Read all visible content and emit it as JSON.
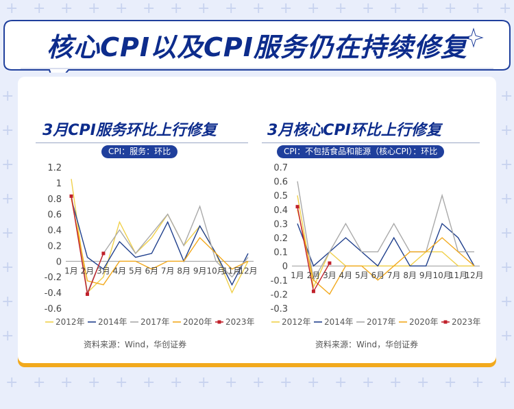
{
  "page": {
    "title": "核心CPI以及CPI服务仍在持续修复",
    "colors": {
      "background": "#e9eefb",
      "title": "#0d2c8c",
      "badge": "#1f3f9c",
      "accent": "#f2a91d"
    }
  },
  "chart_data": [
    {
      "type": "line",
      "title": "3月CPI服务环比上行修复",
      "subtitle": "CPI：服务：环比",
      "source": "资料来源：Wind，华创证券",
      "categories": [
        "1月",
        "2月",
        "3月",
        "4月",
        "5月",
        "6月",
        "7月",
        "8月",
        "9月",
        "10月",
        "11月",
        "12月"
      ],
      "y_ticks": [
        "1.2",
        "1",
        "0.8",
        "0.6",
        "0.4",
        "0.2",
        "0",
        "-0.2",
        "-0.4",
        "-0.6"
      ],
      "ylim": [
        -0.6,
        1.2
      ],
      "legend_position": "bottom",
      "series": [
        {
          "name": "2012年",
          "color": "#f0d04a",
          "values": [
            1.05,
            -0.4,
            -0.2,
            0.5,
            0.1,
            0.3,
            0.6,
            0.2,
            0.45,
            0.1,
            -0.4,
            0.0
          ]
        },
        {
          "name": "2014年",
          "color": "#1f3f8c",
          "values": [
            0.8,
            0.05,
            -0.1,
            0.25,
            0.05,
            0.1,
            0.5,
            0.0,
            0.45,
            0.1,
            -0.3,
            0.1
          ]
        },
        {
          "name": "2017年",
          "color": "#a9a9a9",
          "values": [
            0.85,
            -0.4,
            0.1,
            0.4,
            0.1,
            0.35,
            0.6,
            0.2,
            0.7,
            0.0,
            -0.2,
            0.05
          ]
        },
        {
          "name": "2020年",
          "color": "#f2a91d",
          "values": [
            0.8,
            -0.25,
            -0.3,
            0.0,
            0.0,
            -0.1,
            0.0,
            0.0,
            0.3,
            0.1,
            -0.1,
            0.0
          ]
        },
        {
          "name": "2023年",
          "color": "#c0202a",
          "values": [
            0.83,
            -0.42,
            0.1,
            null,
            null,
            null,
            null,
            null,
            null,
            null,
            null,
            null
          ]
        }
      ]
    },
    {
      "type": "line",
      "title": "3月核心CPI环比上行修复",
      "subtitle": "CPI：不包括食品和能源（核心CPI）：环比",
      "source": "资料来源：Wind，华创证券",
      "categories": [
        "1月",
        "2月",
        "3月",
        "4月",
        "5月",
        "6月",
        "7月",
        "8月",
        "9月",
        "10月",
        "11月",
        "12月"
      ],
      "y_ticks": [
        "0.7",
        "0.6",
        "0.5",
        "0.4",
        "0.3",
        "0.2",
        "0.1",
        "0",
        "-0.1",
        "-0.2",
        "-0.3"
      ],
      "ylim": [
        -0.3,
        0.7
      ],
      "legend_position": "bottom",
      "series": [
        {
          "name": "2012年",
          "color": "#f0d04a",
          "values": [
            0.5,
            -0.15,
            0.1,
            0.0,
            0.0,
            0.0,
            0.0,
            0.0,
            0.1,
            0.1,
            0.0,
            0.0
          ]
        },
        {
          "name": "2014年",
          "color": "#1f3f8c",
          "values": [
            0.3,
            0.0,
            0.1,
            0.2,
            0.1,
            0.0,
            0.2,
            0.0,
            0.0,
            0.3,
            0.2,
            0.0
          ]
        },
        {
          "name": "2017年",
          "color": "#a9a9a9",
          "values": [
            0.6,
            -0.1,
            0.1,
            0.3,
            0.1,
            0.1,
            0.3,
            0.1,
            0.1,
            0.5,
            0.1,
            0.1
          ]
        },
        {
          "name": "2020年",
          "color": "#f2a91d",
          "values": [
            0.4,
            -0.1,
            -0.2,
            0.0,
            0.0,
            -0.1,
            0.0,
            0.1,
            0.1,
            0.2,
            0.1,
            0.0
          ]
        },
        {
          "name": "2023年",
          "color": "#c0202a",
          "values": [
            0.42,
            -0.18,
            0.02,
            null,
            null,
            null,
            null,
            null,
            null,
            null,
            null,
            null
          ]
        }
      ]
    }
  ]
}
